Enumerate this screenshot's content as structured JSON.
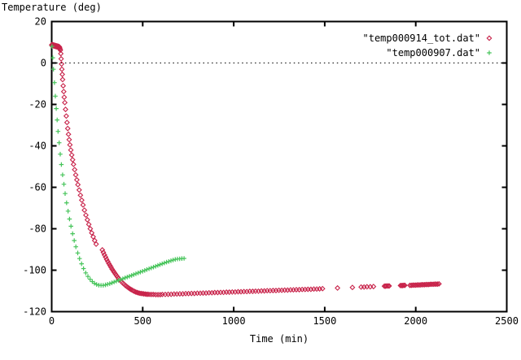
{
  "chart_data": {
    "type": "scatter",
    "title": "Temperature (deg)",
    "xlabel": "Time (min)",
    "ylabel": "",
    "xlim": [
      0,
      2500
    ],
    "ylim": [
      -120,
      20
    ],
    "x_ticks": [
      0,
      500,
      1000,
      1500,
      2000,
      2500
    ],
    "y_ticks": [
      20,
      0,
      -20,
      -40,
      -60,
      -80,
      -100,
      -120
    ],
    "zero_line_y": 0,
    "grid": "zero-axis-dotted-only",
    "legend_position": "top-right",
    "frame_color": "#000000",
    "background_color": "#ffffff",
    "series": [
      {
        "name": "\"temp000914_tot.dat\"",
        "marker": "diamond",
        "color": "#c8234a",
        "points": [
          [
            0,
            8.6
          ],
          [
            2,
            8.9
          ],
          [
            4,
            8.4
          ],
          [
            6,
            8.8
          ],
          [
            8,
            8.3
          ],
          [
            10,
            8.7
          ],
          [
            12,
            8.2
          ],
          [
            14,
            8.6
          ],
          [
            16,
            8.2
          ],
          [
            18,
            8.5
          ],
          [
            20,
            8.0
          ],
          [
            22,
            8.4
          ],
          [
            24,
            7.9
          ],
          [
            26,
            8.3
          ],
          [
            28,
            7.8
          ],
          [
            30,
            8.2
          ],
          [
            32,
            7.7
          ],
          [
            34,
            8.1
          ],
          [
            36,
            7.7
          ],
          [
            38,
            8.0
          ],
          [
            40,
            7.5
          ],
          [
            42,
            7.8
          ],
          [
            44,
            7.3
          ],
          [
            46,
            6.8
          ],
          [
            48,
            6.2
          ],
          [
            50,
            4.5
          ],
          [
            52,
            2.0
          ],
          [
            54,
            -0.5
          ],
          [
            56,
            -3.0
          ],
          [
            58,
            -5.5
          ],
          [
            60,
            -8.0
          ],
          [
            63,
            -11.0
          ],
          [
            66,
            -13.8
          ],
          [
            69,
            -16.5
          ],
          [
            72,
            -19.1
          ],
          [
            76,
            -22.4
          ],
          [
            80,
            -25.6
          ],
          [
            84,
            -28.7
          ],
          [
            88,
            -31.6
          ],
          [
            92,
            -34.4
          ],
          [
            96,
            -37.0
          ],
          [
            100,
            -39.5
          ],
          [
            105,
            -42.0
          ],
          [
            110,
            -44.4
          ],
          [
            115,
            -46.7
          ],
          [
            120,
            -48.9
          ],
          [
            126,
            -51.5
          ],
          [
            132,
            -54.0
          ],
          [
            138,
            -56.4
          ],
          [
            144,
            -58.7
          ],
          [
            151,
            -61.3
          ],
          [
            158,
            -63.8
          ],
          [
            165,
            -66.2
          ],
          [
            172,
            -68.5
          ],
          [
            180,
            -71.0
          ],
          [
            188,
            -73.4
          ],
          [
            196,
            -75.7
          ],
          [
            204,
            -77.9
          ],
          [
            212,
            -80.0
          ],
          [
            220,
            -82.0
          ],
          [
            228,
            -83.9
          ],
          [
            236,
            -85.7
          ],
          [
            244,
            -87.4
          ],
          [
            278,
            -90.2
          ],
          [
            284,
            -91.4
          ],
          [
            290,
            -92.6
          ],
          [
            296,
            -93.7
          ],
          [
            302,
            -94.8
          ],
          [
            308,
            -95.8
          ],
          [
            314,
            -96.8
          ],
          [
            320,
            -97.7
          ],
          [
            326,
            -98.6
          ],
          [
            332,
            -99.5
          ],
          [
            338,
            -100.3
          ],
          [
            344,
            -101.1
          ],
          [
            350,
            -101.9
          ],
          [
            356,
            -102.6
          ],
          [
            362,
            -103.3
          ],
          [
            368,
            -104.0
          ],
          [
            374,
            -104.6
          ],
          [
            380,
            -105.2
          ],
          [
            386,
            -105.8
          ],
          [
            392,
            -106.3
          ],
          [
            398,
            -106.8
          ],
          [
            404,
            -107.3
          ],
          [
            410,
            -107.7
          ],
          [
            416,
            -108.1
          ],
          [
            422,
            -108.5
          ],
          [
            428,
            -108.9
          ],
          [
            434,
            -109.2
          ],
          [
            440,
            -109.5
          ],
          [
            447,
            -109.9
          ],
          [
            454,
            -110.2
          ],
          [
            461,
            -110.5
          ],
          [
            468,
            -110.7
          ],
          [
            475,
            -110.9
          ],
          [
            482,
            -111.1
          ],
          [
            490,
            -111.2
          ],
          [
            498,
            -111.3
          ],
          [
            506,
            -111.4
          ],
          [
            514,
            -111.5
          ],
          [
            522,
            -111.6
          ],
          [
            530,
            -111.6
          ],
          [
            540,
            -111.7
          ],
          [
            550,
            -111.7
          ],
          [
            560,
            -111.7
          ],
          [
            572,
            -111.8
          ],
          [
            584,
            -111.8
          ],
          [
            596,
            -111.8
          ],
          [
            608,
            -111.7
          ],
          [
            624,
            -111.7
          ],
          [
            640,
            -111.6
          ],
          [
            656,
            -111.6
          ],
          [
            672,
            -111.5
          ],
          [
            688,
            -111.5
          ],
          [
            704,
            -111.4
          ],
          [
            720,
            -111.4
          ],
          [
            736,
            -111.3
          ],
          [
            752,
            -111.3
          ],
          [
            768,
            -111.2
          ],
          [
            784,
            -111.2
          ],
          [
            800,
            -111.1
          ],
          [
            816,
            -111.1
          ],
          [
            832,
            -111.0
          ],
          [
            848,
            -111.0
          ],
          [
            864,
            -110.9
          ],
          [
            880,
            -110.9
          ],
          [
            896,
            -110.8
          ],
          [
            912,
            -110.8
          ],
          [
            928,
            -110.7
          ],
          [
            944,
            -110.7
          ],
          [
            960,
            -110.6
          ],
          [
            976,
            -110.6
          ],
          [
            992,
            -110.5
          ],
          [
            1008,
            -110.5
          ],
          [
            1024,
            -110.4
          ],
          [
            1040,
            -110.4
          ],
          [
            1056,
            -110.3
          ],
          [
            1072,
            -110.3
          ],
          [
            1088,
            -110.2
          ],
          [
            1104,
            -110.2
          ],
          [
            1120,
            -110.1
          ],
          [
            1136,
            -110.1
          ],
          [
            1152,
            -110.0
          ],
          [
            1168,
            -110.0
          ],
          [
            1184,
            -109.9
          ],
          [
            1200,
            -109.9
          ],
          [
            1216,
            -109.8
          ],
          [
            1232,
            -109.8
          ],
          [
            1248,
            -109.7
          ],
          [
            1264,
            -109.7
          ],
          [
            1280,
            -109.6
          ],
          [
            1296,
            -109.6
          ],
          [
            1312,
            -109.5
          ],
          [
            1328,
            -109.5
          ],
          [
            1344,
            -109.4
          ],
          [
            1360,
            -109.4
          ],
          [
            1376,
            -109.3
          ],
          [
            1392,
            -109.3
          ],
          [
            1408,
            -109.2
          ],
          [
            1424,
            -109.2
          ],
          [
            1440,
            -109.1
          ],
          [
            1456,
            -109.1
          ],
          [
            1472,
            -109.0
          ],
          [
            1488,
            -108.9
          ],
          [
            1570,
            -108.6
          ],
          [
            1652,
            -108.3
          ],
          [
            1700,
            -108.1
          ],
          [
            1716,
            -108.1
          ],
          [
            1732,
            -108.0
          ],
          [
            1750,
            -108.0
          ],
          [
            1768,
            -107.9
          ],
          [
            1828,
            -107.7
          ],
          [
            1834,
            -107.7
          ],
          [
            1840,
            -107.6
          ],
          [
            1848,
            -107.6
          ],
          [
            1854,
            -107.6
          ],
          [
            1916,
            -107.4
          ],
          [
            1922,
            -107.4
          ],
          [
            1928,
            -107.4
          ],
          [
            1934,
            -107.3
          ],
          [
            1940,
            -107.3
          ],
          [
            1968,
            -107.3
          ],
          [
            1976,
            -107.3
          ],
          [
            1984,
            -107.2
          ],
          [
            1992,
            -107.2
          ],
          [
            2000,
            -107.2
          ],
          [
            2008,
            -107.1
          ],
          [
            2016,
            -107.1
          ],
          [
            2024,
            -107.1
          ],
          [
            2032,
            -107.0
          ],
          [
            2040,
            -107.0
          ],
          [
            2048,
            -107.0
          ],
          [
            2056,
            -106.9
          ],
          [
            2064,
            -106.9
          ],
          [
            2072,
            -106.9
          ],
          [
            2080,
            -106.8
          ],
          [
            2088,
            -106.8
          ],
          [
            2096,
            -106.8
          ],
          [
            2104,
            -106.7
          ],
          [
            2112,
            -106.7
          ],
          [
            2120,
            -106.7
          ],
          [
            2128,
            -106.6
          ]
        ]
      },
      {
        "name": "\"temp000907.dat\"",
        "marker": "plus",
        "color": "#46c45a",
        "points": [
          [
            2,
            8.0
          ],
          [
            6,
            2.5
          ],
          [
            10,
            -3.0
          ],
          [
            15,
            -9.5
          ],
          [
            20,
            -16.0
          ],
          [
            25,
            -22.0
          ],
          [
            30,
            -27.5
          ],
          [
            35,
            -33.0
          ],
          [
            41,
            -38.5
          ],
          [
            47,
            -44.0
          ],
          [
            53,
            -49.0
          ],
          [
            60,
            -54.0
          ],
          [
            67,
            -58.5
          ],
          [
            74,
            -63.0
          ],
          [
            82,
            -67.5
          ],
          [
            90,
            -71.5
          ],
          [
            98,
            -75.3
          ],
          [
            106,
            -78.8
          ],
          [
            115,
            -82.4
          ],
          [
            124,
            -85.7
          ],
          [
            133,
            -88.7
          ],
          [
            143,
            -91.7
          ],
          [
            153,
            -94.4
          ],
          [
            164,
            -96.9
          ],
          [
            175,
            -99.2
          ],
          [
            187,
            -101.3
          ],
          [
            199,
            -103.0
          ],
          [
            211,
            -104.4
          ],
          [
            223,
            -105.5
          ],
          [
            235,
            -106.3
          ],
          [
            247,
            -106.9
          ],
          [
            259,
            -107.2
          ],
          [
            271,
            -107.3
          ],
          [
            283,
            -107.3
          ],
          [
            295,
            -107.1
          ],
          [
            307,
            -106.8
          ],
          [
            319,
            -106.5
          ],
          [
            331,
            -106.1
          ],
          [
            343,
            -105.7
          ],
          [
            355,
            -105.3
          ],
          [
            367,
            -104.9
          ],
          [
            379,
            -104.5
          ],
          [
            391,
            -104.1
          ],
          [
            403,
            -103.7
          ],
          [
            415,
            -103.3
          ],
          [
            427,
            -102.9
          ],
          [
            439,
            -102.5
          ],
          [
            451,
            -102.1
          ],
          [
            463,
            -101.7
          ],
          [
            475,
            -101.3
          ],
          [
            487,
            -100.9
          ],
          [
            499,
            -100.5
          ],
          [
            511,
            -100.1
          ],
          [
            523,
            -99.7
          ],
          [
            535,
            -99.3
          ],
          [
            547,
            -98.9
          ],
          [
            559,
            -98.5
          ],
          [
            571,
            -98.1
          ],
          [
            583,
            -97.7
          ],
          [
            595,
            -97.3
          ],
          [
            607,
            -96.9
          ],
          [
            619,
            -96.5
          ],
          [
            631,
            -96.1
          ],
          [
            643,
            -95.8
          ],
          [
            655,
            -95.4
          ],
          [
            667,
            -95.1
          ],
          [
            679,
            -94.8
          ],
          [
            691,
            -94.6
          ],
          [
            703,
            -94.5
          ],
          [
            715,
            -94.4
          ],
          [
            727,
            -94.3
          ]
        ]
      }
    ]
  }
}
